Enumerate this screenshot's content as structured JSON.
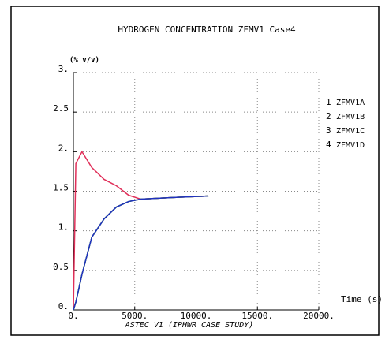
{
  "chart_data": {
    "type": "line",
    "title": "HYDROGEN CONCENTRATION ZFMV1 Case4",
    "y_label": "(% v/v)",
    "x_label": "Time (s)",
    "footer": "ASTEC V1 (IPHWR CASE STUDY)",
    "x": [
      0,
      200,
      700,
      1500,
      2500,
      3500,
      4500,
      5500,
      8000,
      11000
    ],
    "series": [
      {
        "marker": "1",
        "name": "ZFMV1A",
        "color": "#000000",
        "values": [
          0,
          0.1,
          0.45,
          0.92,
          1.15,
          1.3,
          1.37,
          1.4,
          1.42,
          1.44
        ]
      },
      {
        "marker": "2",
        "name": "ZFMV1B",
        "color": "#e0305a",
        "values": [
          0,
          1.85,
          2.0,
          1.8,
          1.65,
          1.57,
          1.45,
          1.4,
          1.42,
          1.44
        ]
      },
      {
        "marker": "3",
        "name": "ZFMV1C",
        "color": "#40c040",
        "values": [
          0,
          0.1,
          0.45,
          0.92,
          1.15,
          1.3,
          1.37,
          1.4,
          1.42,
          1.44
        ]
      },
      {
        "marker": "4",
        "name": "ZFMV1D",
        "color": "#2030c0",
        "values": [
          0,
          0.1,
          0.45,
          0.92,
          1.15,
          1.3,
          1.37,
          1.4,
          1.42,
          1.44
        ]
      }
    ],
    "xlim": [
      0,
      20000
    ],
    "xticks": [
      {
        "value": 0,
        "label": "0."
      },
      {
        "value": 5000,
        "label": "5000."
      },
      {
        "value": 10000,
        "label": "10000."
      },
      {
        "value": 15000,
        "label": "15000."
      },
      {
        "value": 20000,
        "label": "20000."
      }
    ],
    "ylim": [
      0,
      3
    ],
    "yticks": [
      {
        "value": 0,
        "label": "0."
      },
      0.5,
      {
        "value": 1,
        "label": "1."
      },
      1.5,
      {
        "value": 2,
        "label": "2."
      },
      2.5,
      {
        "value": 3,
        "label": "3."
      }
    ],
    "grid": true
  }
}
